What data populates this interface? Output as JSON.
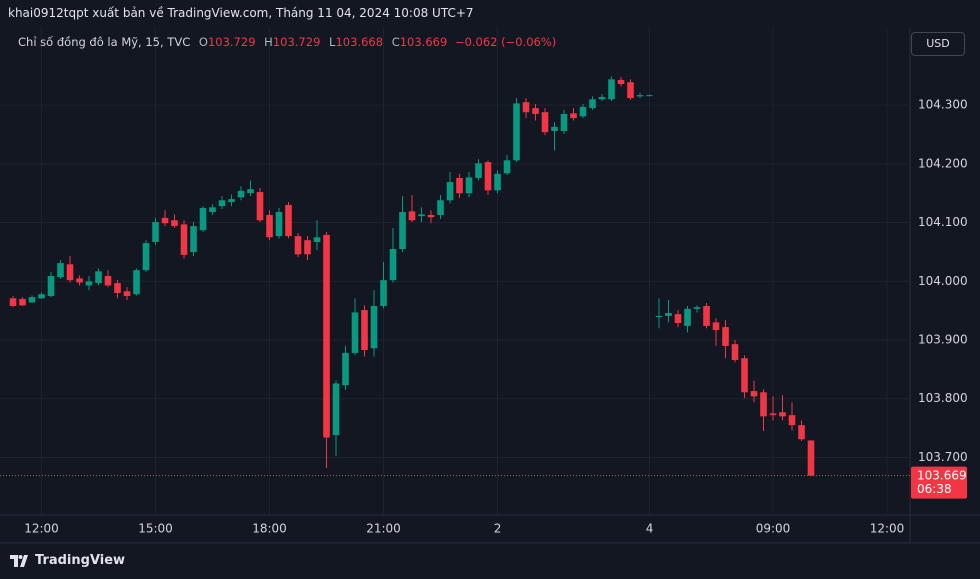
{
  "header": "khai0912tqpt xuất bản về TradingView.com, Tháng 11 04, 2024 10:08 UTC+7",
  "brand": "TradingView",
  "chart_data": {
    "type": "candlestick",
    "title": "Chỉ số đồng đô la Mỹ, 15, TVC",
    "ohlc_labels": [
      "O",
      "H",
      "L",
      "C"
    ],
    "change": "−0.062 (−0.06%)",
    "currency": "USD",
    "countdown": "06:38",
    "up_color": "#089981",
    "down_color": "#f23645",
    "grid": true,
    "open": [
      103.971,
      103.97,
      103.964,
      103.971,
      103.975,
      104.007,
      104.029,
      104.005,
      103.993,
      103.997,
      104.009,
      103.997,
      103.983,
      103.978,
      104.019,
      104.067,
      104.108,
      104.104,
      104.097,
      104.05,
      104.087,
      104.118,
      104.128,
      104.135,
      104.143,
      104.15,
      104.152,
      104.113,
      104.077,
      104.13,
      104.077,
      104.07,
      104.067,
      104.079,
      103.738,
      103.823,
      103.878,
      103.951,
      103.886,
      103.958,
      104.002,
      104.055,
      104.119,
      104.111,
      104.113,
      104.113,
      104.138,
      104.176,
      104.15,
      104.176,
      104.203,
      104.155,
      104.184,
      104.206,
      104.305,
      104.295,
      104.288,
      104.256,
      104.256,
      104.286,
      104.281,
      104.295,
      104.31,
      104.31,
      104.343,
      104.339,
      104.315,
      104.317,
      103.939,
      103.941,
      103.944,
      103.924,
      103.953,
      103.958,
      103.93,
      103.922,
      103.893,
      103.869,
      103.813,
      103.811,
      103.775,
      103.777,
      103.772,
      103.755,
      103.729
    ],
    "high": [
      103.975,
      103.973,
      103.976,
      103.981,
      104.016,
      104.036,
      104.043,
      104.01,
      104.009,
      104.022,
      104.019,
      104.002,
      103.99,
      104.022,
      104.07,
      104.108,
      104.121,
      104.114,
      104.104,
      104.101,
      104.128,
      104.131,
      104.145,
      104.148,
      104.162,
      104.172,
      104.159,
      104.121,
      104.125,
      104.135,
      104.082,
      104.077,
      104.104,
      104.084,
      103.831,
      103.89,
      103.971,
      103.959,
      103.985,
      104.033,
      104.091,
      104.145,
      104.147,
      104.126,
      104.121,
      104.147,
      104.186,
      104.183,
      104.186,
      104.208,
      104.206,
      104.189,
      104.215,
      104.312,
      104.312,
      104.302,
      104.295,
      104.271,
      104.292,
      104.295,
      104.302,
      104.315,
      104.319,
      104.349,
      104.348,
      104.344,
      104.321,
      104.318,
      103.971,
      103.968,
      103.951,
      103.958,
      103.959,
      103.963,
      103.937,
      103.934,
      103.9,
      103.874,
      103.831,
      103.816,
      103.804,
      103.806,
      103.794,
      103.763,
      103.729
    ],
    "low": [
      103.956,
      103.958,
      103.963,
      103.97,
      103.973,
      104.004,
      103.998,
      103.993,
      103.985,
      103.993,
      103.99,
      103.971,
      103.968,
      103.976,
      104.016,
      104.062,
      104.094,
      104.091,
      104.039,
      104.043,
      104.084,
      104.113,
      104.123,
      104.128,
      104.138,
      104.145,
      104.101,
      104.07,
      104.073,
      104.073,
      104.041,
      104.036,
      104.053,
      103.682,
      103.702,
      103.815,
      103.874,
      103.872,
      103.872,
      103.954,
      103.998,
      104.05,
      104.101,
      104.101,
      104.099,
      104.106,
      104.133,
      104.142,
      104.143,
      104.172,
      104.147,
      104.15,
      104.181,
      104.203,
      104.278,
      104.274,
      104.249,
      104.223,
      104.251,
      104.274,
      104.278,
      104.292,
      104.307,
      104.307,
      104.332,
      104.309,
      104.312,
      104.316,
      103.92,
      103.93,
      103.922,
      103.913,
      103.947,
      103.92,
      103.89,
      103.869,
      103.862,
      103.801,
      103.794,
      103.745,
      103.763,
      103.763,
      103.746,
      103.728,
      103.668
    ],
    "close": [
      103.958,
      103.959,
      103.973,
      103.978,
      104.009,
      104.031,
      104.002,
      103.998,
      104.0,
      104.017,
      103.993,
      103.98,
      103.975,
      104.019,
      104.065,
      104.101,
      104.099,
      104.094,
      104.045,
      104.094,
      104.125,
      104.126,
      104.138,
      104.14,
      104.154,
      104.157,
      104.104,
      104.075,
      104.118,
      104.077,
      104.046,
      104.046,
      104.075,
      103.734,
      103.826,
      103.878,
      103.947,
      103.883,
      103.958,
      104.002,
      104.055,
      104.118,
      104.104,
      104.114,
      104.109,
      104.138,
      104.169,
      104.15,
      104.177,
      104.201,
      104.155,
      104.183,
      104.206,
      104.303,
      104.288,
      104.285,
      104.254,
      104.263,
      104.285,
      104.278,
      104.297,
      104.31,
      104.314,
      104.344,
      104.336,
      104.312,
      104.317,
      104.317,
      103.941,
      103.946,
      103.929,
      103.953,
      103.956,
      103.924,
      103.917,
      103.89,
      103.866,
      103.811,
      103.804,
      103.77,
      103.772,
      103.77,
      103.755,
      103.731,
      103.669
    ],
    "ylim": [
      103.602,
      104.428
    ],
    "yticks": [
      {
        "value": 103.7,
        "label": "103.700"
      },
      {
        "value": 103.8,
        "label": "103.800"
      },
      {
        "value": 103.9,
        "label": "103.900"
      },
      {
        "value": 104.0,
        "label": "104.000"
      },
      {
        "value": 104.1,
        "label": "104.100"
      },
      {
        "value": 104.2,
        "label": "104.200"
      },
      {
        "value": 104.3,
        "label": "104.300"
      }
    ],
    "xlim": [
      -1.37,
      94.42
    ],
    "xticks": [
      {
        "value": 3,
        "label": "12:00"
      },
      {
        "value": 15,
        "label": "15:00"
      },
      {
        "value": 27,
        "label": "18:00"
      },
      {
        "value": 39,
        "label": "21:00"
      },
      {
        "value": 51,
        "label": "2"
      },
      {
        "value": 67,
        "label": "4"
      },
      {
        "value": 80,
        "label": "09:00"
      },
      {
        "value": 92,
        "label": "12:00"
      }
    ]
  }
}
